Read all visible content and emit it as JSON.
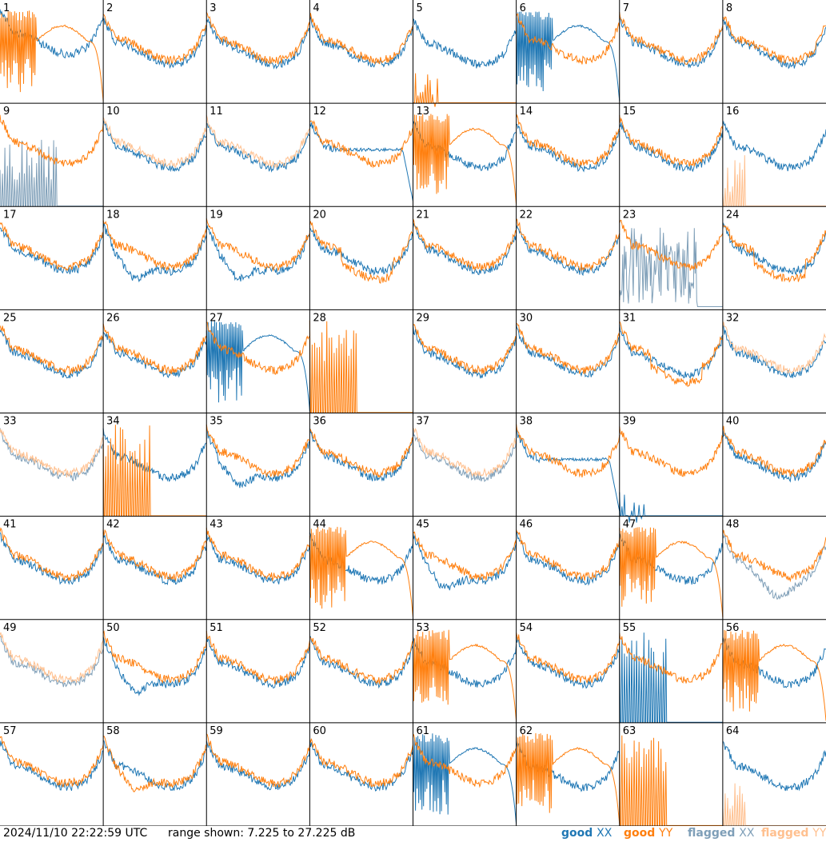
{
  "chart_data": {
    "type": "line",
    "grid": {
      "rows": 8,
      "cols": 8
    },
    "y_range_db": [
      7.225,
      27.225
    ],
    "series_styles": [
      {
        "key": "good_xx",
        "color": "#1f77b4"
      },
      {
        "key": "good_yy",
        "color": "#ff7f0e"
      },
      {
        "key": "flagged_xx",
        "color": "#7f9fb8"
      },
      {
        "key": "flagged_yy",
        "color": "#ffc08f"
      }
    ],
    "panels": [
      {
        "id": "1",
        "profile": "normal",
        "xx": "wavy",
        "yy": "ringdrop",
        "yy_offset": 0
      },
      {
        "id": "2",
        "profile": "normal",
        "xx": "normal",
        "yy": "normal"
      },
      {
        "id": "3",
        "profile": "normal",
        "xx": "normal",
        "yy": "normal"
      },
      {
        "id": "4",
        "profile": "normal",
        "xx": "normal",
        "yy": "normal"
      },
      {
        "id": "5",
        "profile": "normal",
        "xx": "normal",
        "yy": "spikes_low"
      },
      {
        "id": "6",
        "profile": "normal",
        "xx": "ringdrop",
        "yy": "normal"
      },
      {
        "id": "7",
        "profile": "normal",
        "xx": "normal",
        "yy": "normal"
      },
      {
        "id": "8",
        "profile": "normal",
        "xx": "normal",
        "yy": "normal"
      },
      {
        "id": "9",
        "profile": "normal",
        "xx": "flagged_spikes",
        "yy": "normal"
      },
      {
        "id": "10",
        "profile": "normal",
        "xx": "normal",
        "yy": "flagged_normal"
      },
      {
        "id": "11",
        "profile": "normal",
        "xx": "normal",
        "yy": "flagged_normal"
      },
      {
        "id": "12",
        "profile": "normal",
        "xx": "flatdrop",
        "yy": "normal"
      },
      {
        "id": "13",
        "profile": "normal",
        "xx": "normal",
        "yy": "ringdrop"
      },
      {
        "id": "14",
        "profile": "normal",
        "xx": "normal",
        "yy": "normal"
      },
      {
        "id": "15",
        "profile": "normal",
        "xx": "normal",
        "yy": "normal"
      },
      {
        "id": "16",
        "profile": "normal",
        "xx": "normal",
        "yy": "flagged_spike"
      },
      {
        "id": "17",
        "profile": "normal",
        "xx": "normal",
        "yy": "normal"
      },
      {
        "id": "18",
        "profile": "normal",
        "xx": "dip",
        "yy": "normal"
      },
      {
        "id": "19",
        "profile": "normal",
        "xx": "dip",
        "yy": "normal"
      },
      {
        "id": "20",
        "profile": "normal",
        "xx": "normal",
        "yy": "lowflat"
      },
      {
        "id": "21",
        "profile": "normal",
        "xx": "normal",
        "yy": "normal"
      },
      {
        "id": "22",
        "profile": "normal",
        "xx": "normal",
        "yy": "normal"
      },
      {
        "id": "23",
        "profile": "normal",
        "xx": "flagged_noise",
        "yy": "normal"
      },
      {
        "id": "24",
        "profile": "normal",
        "xx": "normal",
        "yy": "lowflat"
      },
      {
        "id": "25",
        "profile": "normal",
        "xx": "normal",
        "yy": "normal"
      },
      {
        "id": "26",
        "profile": "normal",
        "xx": "normal",
        "yy": "normal"
      },
      {
        "id": "27",
        "profile": "normal",
        "xx": "ringdrop",
        "yy": "normal"
      },
      {
        "id": "28",
        "profile": "normal",
        "xx": "none",
        "yy": "spikes_tall"
      },
      {
        "id": "29",
        "profile": "normal",
        "xx": "normal",
        "yy": "normal"
      },
      {
        "id": "30",
        "profile": "normal",
        "xx": "normal",
        "yy": "normal"
      },
      {
        "id": "31",
        "profile": "normal",
        "xx": "normal",
        "yy": "lowflat"
      },
      {
        "id": "32",
        "profile": "normal",
        "xx": "normal_spike",
        "yy": "flagged_normal"
      },
      {
        "id": "33",
        "profile": "normal",
        "xx": "flagged_normal",
        "yy": "flagged_normal"
      },
      {
        "id": "34",
        "profile": "normal",
        "xx": "normal",
        "yy": "spikes_tall"
      },
      {
        "id": "35",
        "profile": "normal",
        "xx": "dip",
        "yy": "normal"
      },
      {
        "id": "36",
        "profile": "normal",
        "xx": "normal",
        "yy": "normal"
      },
      {
        "id": "37",
        "profile": "normal",
        "xx": "flagged_normal",
        "yy": "flagged_normal"
      },
      {
        "id": "38",
        "profile": "normal",
        "xx": "flatdrop",
        "yy": "normal"
      },
      {
        "id": "39",
        "profile": "normal",
        "xx": "spikes_low",
        "yy": "normal"
      },
      {
        "id": "40",
        "profile": "normal",
        "xx": "normal",
        "yy": "normal"
      },
      {
        "id": "41",
        "profile": "normal",
        "xx": "normal",
        "yy": "normal"
      },
      {
        "id": "42",
        "profile": "normal",
        "xx": "normal",
        "yy": "normal"
      },
      {
        "id": "43",
        "profile": "normal",
        "xx": "normal",
        "yy": "normal"
      },
      {
        "id": "44",
        "profile": "normal",
        "xx": "normal",
        "yy": "ringdrop"
      },
      {
        "id": "45",
        "profile": "normal",
        "xx": "dip",
        "yy": "normal"
      },
      {
        "id": "46",
        "profile": "normal",
        "xx": "normal",
        "yy": "normal"
      },
      {
        "id": "47",
        "profile": "normal",
        "xx": "normal",
        "yy": "ringdrop"
      },
      {
        "id": "48",
        "profile": "normal",
        "xx": "flagged_dip",
        "yy": "normal"
      },
      {
        "id": "49",
        "profile": "normal",
        "xx": "flagged_normal",
        "yy": "flagged_normal"
      },
      {
        "id": "50",
        "profile": "normal",
        "xx": "dip",
        "yy": "normal"
      },
      {
        "id": "51",
        "profile": "normal",
        "xx": "normal",
        "yy": "normal"
      },
      {
        "id": "52",
        "profile": "normal",
        "xx": "normal",
        "yy": "normal"
      },
      {
        "id": "53",
        "profile": "normal",
        "xx": "normal",
        "yy": "ringdrop"
      },
      {
        "id": "54",
        "profile": "normal",
        "xx": "normal",
        "yy": "normal"
      },
      {
        "id": "55",
        "profile": "normal",
        "xx": "spikes_tall",
        "yy": "normal"
      },
      {
        "id": "56",
        "profile": "normal",
        "xx": "normal",
        "yy": "ringdrop"
      },
      {
        "id": "57",
        "profile": "normal",
        "xx": "normal",
        "yy": "normal"
      },
      {
        "id": "58",
        "profile": "normal",
        "xx": "normal",
        "yy": "dip"
      },
      {
        "id": "59",
        "profile": "normal",
        "xx": "normal",
        "yy": "normal"
      },
      {
        "id": "60",
        "profile": "normal",
        "xx": "normal",
        "yy": "normal"
      },
      {
        "id": "61",
        "profile": "normal",
        "xx": "ringdrop",
        "yy": "normal"
      },
      {
        "id": "62",
        "profile": "normal",
        "xx": "normal",
        "yy": "ringdrop"
      },
      {
        "id": "63",
        "profile": "normal",
        "xx": "none",
        "yy": "spikes_tall"
      },
      {
        "id": "64",
        "profile": "normal",
        "xx": "normal",
        "yy": "flagged_spike"
      }
    ]
  },
  "footer": {
    "timestamp": "2024/11/10 22:22:59 UTC",
    "range_text": "range shown: 7.225 to 27.225 dB",
    "legend": [
      {
        "label": "good",
        "pol": "XX",
        "color": "#1f77b4"
      },
      {
        "label": "good",
        "pol": "YY",
        "color": "#ff7f0e"
      },
      {
        "label": "flagged",
        "pol": "XX",
        "color": "#7f9fb8"
      },
      {
        "label": "flagged",
        "pol": "YY",
        "color": "#ffc08f"
      }
    ]
  }
}
